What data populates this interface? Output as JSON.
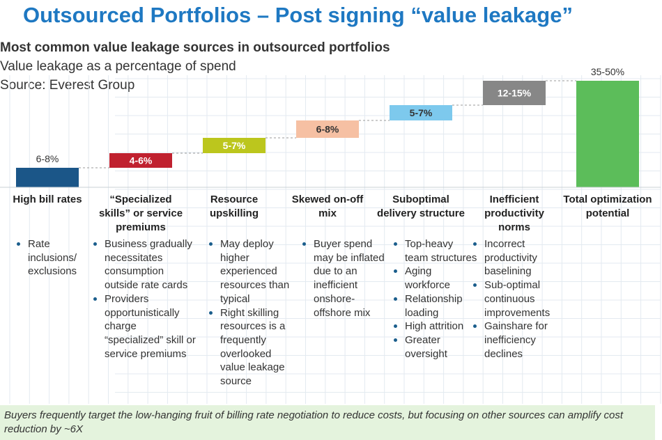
{
  "header": {
    "title": "Outsourced Portfolios – Post signing “value leakage”",
    "subtitle": "Most common value leakage sources in outsourced portfolios",
    "unit_line": "Value leakage as a percentage of spend",
    "source_line": "Source: Everest Group"
  },
  "chart_data": {
    "type": "bar",
    "subtype": "waterfall",
    "title": "Most common value leakage sources in outsourced portfolios",
    "ylabel": "Value leakage as a percentage of spend",
    "grid": true,
    "categories": [
      "High bill rates",
      "“Specialized skills” or service premiums",
      "Resource upskilling",
      "Skewed on-off mix",
      "Suboptimal delivery structure",
      "Inefficient productivity norms",
      "Total optimization potential"
    ],
    "value_labels": [
      "6-8%",
      "4-6%",
      "5-7%",
      "6-8%",
      "5-7%",
      "12-15%",
      "35-50%"
    ],
    "values": [
      7,
      5,
      6,
      7,
      6,
      13.5,
      42.5
    ],
    "colors": [
      "#1b5688",
      "#c0212f",
      "#bcc61d",
      "#f6c0a3",
      "#7dc9ed",
      "#878787",
      "#5cbd5a"
    ]
  },
  "categories_display": [
    {
      "label": "High bill rates",
      "bullets": [
        "Rate inclusions/ exclusions"
      ]
    },
    {
      "label": "“Specialized skills” or service premiums",
      "bullets": [
        "Business gradually necessitates consumption outside rate cards",
        "Providers opportunistically charge “specialized” skill or service premiums"
      ]
    },
    {
      "label": "Resource upskilling",
      "bullets": [
        "May deploy higher experienced resources than typical",
        "Right skilling resources is a frequently overlooked value leakage source"
      ]
    },
    {
      "label": "Skewed on-off mix",
      "bullets": [
        "Buyer spend may be inflated due to an inefficient onshore-offshore mix"
      ]
    },
    {
      "label": "Suboptimal delivery structure",
      "bullets": [
        "Top-heavy team structures",
        "Aging workforce",
        "Relationship loading",
        "High attrition",
        "Greater oversight"
      ]
    },
    {
      "label": "Inefficient productivity norms",
      "bullets": [
        "Incorrect productivity baselining",
        "Sub-optimal continuous improvements",
        "Gainshare for inefficiency declines"
      ]
    },
    {
      "label": "Total optimization potential",
      "bullets": []
    }
  ],
  "footnote": "Buyers frequently target the low-hanging fruit of billing rate negotiation to reduce costs, but focusing on other sources can amplify cost reduction by ~6X"
}
